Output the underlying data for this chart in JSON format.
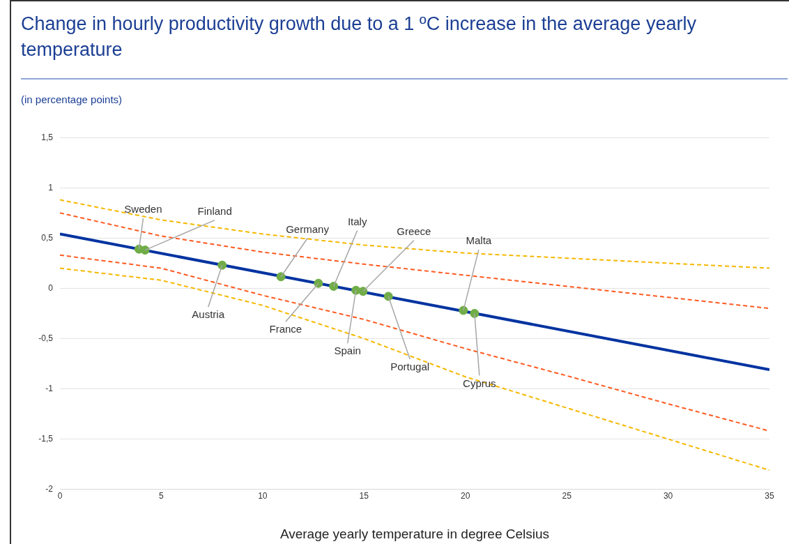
{
  "chart_data": {
    "type": "line",
    "title": "Change in hourly productivity growth due to a 1 ºC increase in the average yearly temperature",
    "subtitle": "(in percentage points)",
    "xlabel": "Average yearly temperature in degree Celsius",
    "xlim": [
      0,
      35
    ],
    "xticks": [
      0,
      5,
      10,
      15,
      20,
      25,
      30,
      35
    ],
    "ylim": [
      -2,
      1.5
    ],
    "yticks": [
      {
        "value": -2,
        "label": "-2"
      },
      {
        "value": -1.5,
        "label": "-1,5"
      },
      {
        "value": -1,
        "label": "-1"
      },
      {
        "value": -0.5,
        "label": "-0,5"
      },
      {
        "value": 0,
        "label": "0"
      },
      {
        "value": 0.5,
        "label": "0,5"
      },
      {
        "value": 1,
        "label": "1"
      },
      {
        "value": 1.5,
        "label": "1,5"
      }
    ],
    "grid": "y",
    "legend": false,
    "series": [
      {
        "color": "#f5b800",
        "line_style": "dashed",
        "x": [
          0,
          5,
          10,
          15,
          20,
          25,
          30,
          35
        ],
        "values": [
          0.88,
          0.68,
          0.54,
          0.43,
          0.35,
          0.3,
          0.25,
          0.2
        ]
      },
      {
        "color": "#ff5a1f",
        "line_style": "dashed",
        "x": [
          0,
          5,
          10,
          15,
          20,
          25,
          30,
          35
        ],
        "values": [
          0.75,
          0.52,
          0.36,
          0.24,
          0.13,
          0.02,
          -0.09,
          -0.2
        ]
      },
      {
        "color": "#ff5a1f",
        "line_style": "dashed",
        "x": [
          0,
          5,
          10,
          15,
          20,
          25,
          30,
          35
        ],
        "values": [
          0.33,
          0.2,
          -0.07,
          -0.31,
          -0.6,
          -0.87,
          -1.15,
          -1.42
        ]
      },
      {
        "color": "#f5b800",
        "line_style": "dashed",
        "x": [
          0,
          5,
          10,
          15,
          20,
          25,
          30,
          35
        ],
        "values": [
          0.2,
          0.08,
          -0.17,
          -0.5,
          -0.88,
          -1.19,
          -1.5,
          -1.81
        ]
      },
      {
        "color": "#0033a0",
        "line_style": "solid",
        "x": [
          0,
          35
        ],
        "values": [
          0.54,
          -0.81
        ]
      },
      {
        "type": "scatter",
        "color": "#70ad47",
        "marker": "circle",
        "x": [
          3.9,
          4.2,
          8,
          10.9,
          12.75,
          13.5,
          14.6,
          14.95,
          16.2,
          19.9,
          20.45
        ],
        "values": [
          0.39,
          0.38,
          0.23,
          0.115,
          0.05,
          0.02,
          -0.02,
          -0.03,
          -0.08,
          -0.22,
          -0.25
        ]
      }
    ],
    "annotations": [
      {
        "text": "Sweden",
        "x": 3.9,
        "y": 0.39
      },
      {
        "text": "Finland",
        "x": 4.2,
        "y": 0.38
      },
      {
        "text": "Austria",
        "x": 8,
        "y": 0.23
      },
      {
        "text": "Germany",
        "x": 10.9,
        "y": 0.115
      },
      {
        "text": "France",
        "x": 12.75,
        "y": 0.05
      },
      {
        "text": "Italy",
        "x": 13.5,
        "y": 0.02
      },
      {
        "text": "Spain",
        "x": 14.6,
        "y": -0.02
      },
      {
        "text": "Greece",
        "x": 14.95,
        "y": -0.03
      },
      {
        "text": "Portugal",
        "x": 16.2,
        "y": -0.08
      },
      {
        "text": "Malta",
        "x": 19.9,
        "y": -0.22
      },
      {
        "text": "Cyprus",
        "x": 20.45,
        "y": -0.25
      }
    ]
  }
}
